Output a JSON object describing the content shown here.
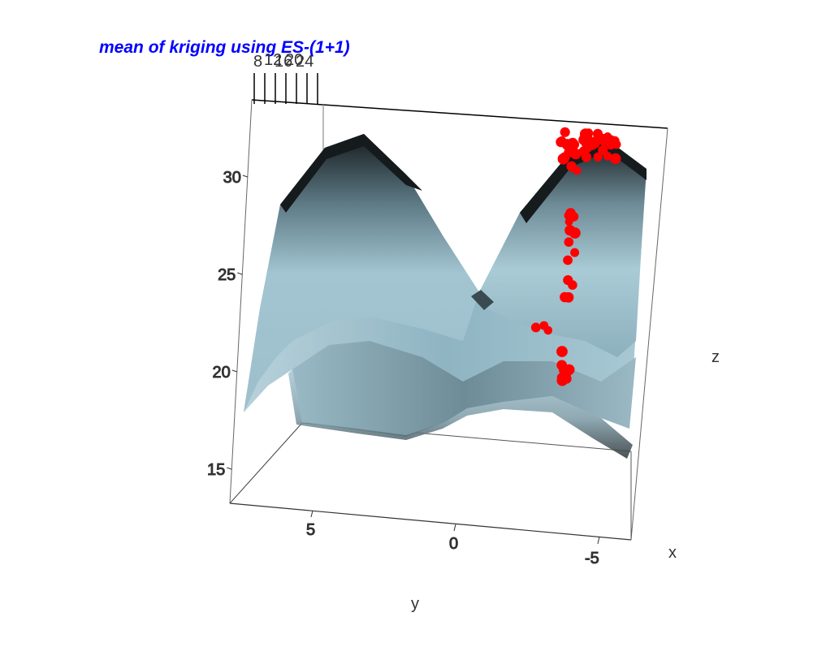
{
  "chart_data": {
    "type": "surface3d",
    "title": "mean of kriging using ES-(1+1)",
    "xlabel": "x",
    "ylabel": "y",
    "zlabel": "z",
    "x_ticks": [
      "-5"
    ],
    "y_ticks": [
      "5",
      "0"
    ],
    "z_ticks": [
      "15",
      "20",
      "25",
      "30"
    ],
    "back_ticks": [
      "8",
      "12",
      "16",
      "20",
      "24"
    ],
    "zlim": [
      15,
      32
    ],
    "series": [
      {
        "kind": "surface",
        "ridges": [
          {
            "y": 4,
            "peak_z": 31
          },
          {
            "y": -5,
            "peak_z": 31.5
          }
        ],
        "valley_z": 22
      },
      {
        "kind": "points",
        "color": "#ff0000",
        "count": 70,
        "z_range": [
          19,
          32
        ]
      }
    ],
    "colors": {
      "title": "#0000ff",
      "surface_light": "#a6cad6",
      "surface_dark": "#1a1f22",
      "points": "#ff0000",
      "box": "#000000"
    }
  }
}
